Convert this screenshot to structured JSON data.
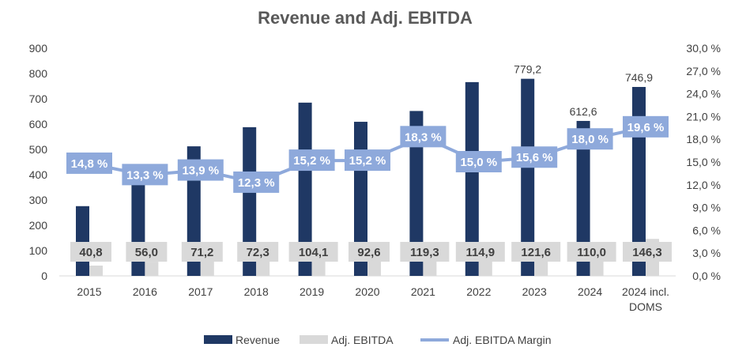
{
  "chart_data": {
    "type": "bar",
    "title": "Revenue and Adj. EBITDA",
    "categories": [
      "2015",
      "2016",
      "2017",
      "2018",
      "2019",
      "2020",
      "2021",
      "2022",
      "2023",
      "2024",
      "2024 incl. DOMS"
    ],
    "series": [
      {
        "name": "Revenue",
        "type": "bar",
        "axis": "left",
        "color": "#1F3864",
        "values": [
          275.7,
          421.1,
          512.2,
          587.8,
          684.9,
          609.2,
          651.9,
          766.0,
          779.2,
          612.6,
          746.9
        ],
        "labels": [
          "",
          "",
          "",
          "",
          "",
          "",
          "",
          "",
          "779,2",
          "612,6",
          "746,9"
        ]
      },
      {
        "name": "Adj. EBITDA",
        "type": "bar",
        "axis": "left",
        "color": "#D9D9D9",
        "values": [
          40.8,
          56.0,
          71.2,
          72.3,
          104.1,
          92.6,
          119.3,
          114.9,
          121.6,
          110.0,
          146.3
        ],
        "labels": [
          "40,8",
          "56,0",
          "71,2",
          "72,3",
          "104,1",
          "92,6",
          "119,3",
          "114,9",
          "121,6",
          "110,0",
          "146,3"
        ]
      },
      {
        "name": "Adj. EBITDA Margin",
        "type": "line",
        "axis": "right",
        "color": "#8EA9DB",
        "values": [
          14.8,
          13.3,
          13.9,
          12.3,
          15.2,
          15.2,
          18.3,
          15.0,
          15.6,
          18.0,
          19.6
        ],
        "labels": [
          "14,8 %",
          "13,3 %",
          "13,9 %",
          "12,3 %",
          "15,2 %",
          "15,2 %",
          "18,3 %",
          "15,0 %",
          "15,6 %",
          "18,0 %",
          "19,6 %"
        ]
      }
    ],
    "ylim": [
      0,
      900
    ],
    "yticks": [
      "0",
      "100",
      "200",
      "300",
      "400",
      "500",
      "600",
      "700",
      "800",
      "900"
    ],
    "y2lim": [
      0,
      30
    ],
    "y2ticks": [
      "0,0 %",
      "3,0 %",
      "6,0 %",
      "9,0 %",
      "12,0 %",
      "15,0 %",
      "18,0 %",
      "21,0 %",
      "24,0 %",
      "27,0 %",
      "30,0 %"
    ],
    "legend_position": "bottom",
    "grid": false
  }
}
